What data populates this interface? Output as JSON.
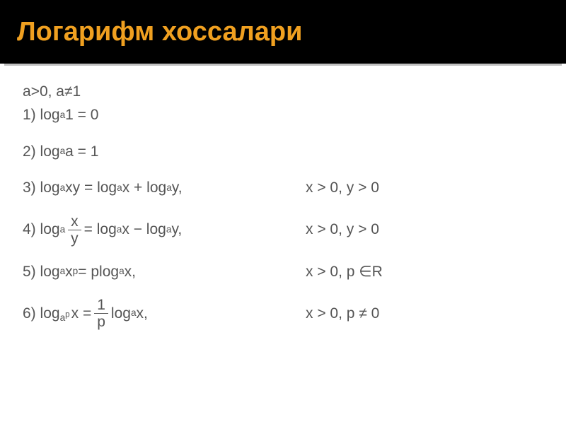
{
  "header": {
    "title": "Логарифм хоссалари",
    "title_color": "#f0a020",
    "background": "#000000",
    "title_fontsize": 38
  },
  "divider_color": "#c0c0c0",
  "content": {
    "text_color": "#555555",
    "fontsize": 21,
    "precondition": "a>0, a≠1",
    "rules": [
      {
        "num": "1)",
        "left_plain": "log",
        "left_sub": "a",
        "left_after": "1 = 0",
        "right": ""
      },
      {
        "num": "2)",
        "left_plain": "log",
        "left_sub": "a",
        "left_after": "a = 1",
        "right": ""
      },
      {
        "num": "3)",
        "left": {
          "pre": "log",
          "sub": "a",
          "mid": "xy = log",
          "sub2": "a",
          "mid2": "x + log",
          "sub3": "a",
          "end": "y,"
        },
        "right": "x > 0, y > 0"
      },
      {
        "num": "4)",
        "left": {
          "pre": "log",
          "sub": "a",
          "frac_num": "x",
          "frac_den": "y",
          "mid": " = log",
          "sub2": "a",
          "mid2": "x − log",
          "sub3": "a",
          "end": "y,"
        },
        "right": "x > 0, y > 0"
      },
      {
        "num": "5)",
        "left": {
          "pre": "log",
          "sub": "a",
          "base": "x",
          "sup": "p",
          "mid": " = plog",
          "sub2": "a",
          "end": "x,"
        },
        "right": "x > 0, p ∈R"
      },
      {
        "num": "6)",
        "left": {
          "pre": "log",
          "sub": "a",
          "subsup": "p",
          "mid": " x = ",
          "frac_num": "1",
          "frac_den": "p",
          "mid2": "log",
          "sub2": "a",
          "end": "x,"
        },
        "right": "x > 0, p ≠ 0"
      }
    ]
  }
}
